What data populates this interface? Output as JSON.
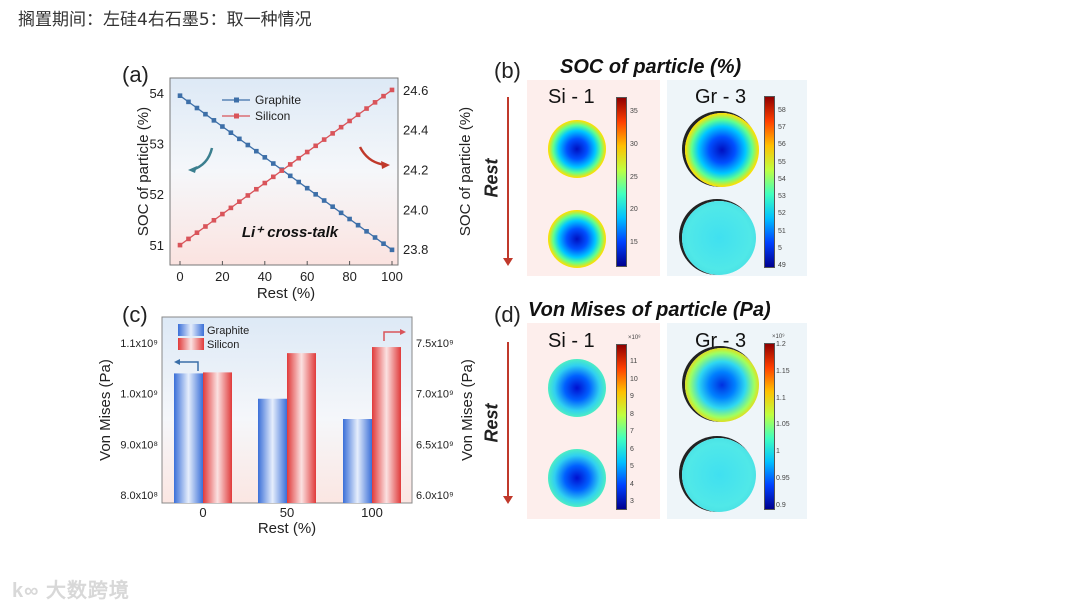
{
  "heading": "搁置期间：左硅4右石墨5：取一种情况",
  "watermark": "大数跨境",
  "panels": {
    "a": {
      "label": "(a)",
      "annotation": "Li⁺ cross-talk"
    },
    "b": {
      "label": "(b)",
      "title": "SOC of particle (%)",
      "rest": "Rest",
      "si": {
        "label": "Si - 1",
        "ticks": [
          "35",
          "30",
          "25",
          "20",
          "15"
        ]
      },
      "gr": {
        "label": "Gr - 3",
        "ticks": [
          "58",
          "57",
          "56",
          "55",
          "54",
          "53",
          "52",
          "51",
          "5",
          "49"
        ]
      }
    },
    "c": {
      "label": "(c)"
    },
    "d": {
      "label": "(d)",
      "title": "Von Mises of particle (Pa)",
      "rest": "Rest",
      "si": {
        "label": "Si - 1",
        "exp": "×10⁸",
        "ticks": [
          "11",
          "10",
          "9",
          "8",
          "7",
          "6",
          "5",
          "4",
          "3"
        ]
      },
      "gr": {
        "label": "Gr - 3",
        "exp": "×10⁹",
        "ticks": [
          "1.2",
          "1.15",
          "1.1",
          "1.05",
          "1",
          "0.95",
          "0.9"
        ]
      }
    }
  },
  "chart_data": [
    {
      "type": "line",
      "xlabel": "Rest (%)",
      "ylabel": "SOC of particle (%)",
      "y2label": "SOC of particle (%)",
      "xlim": [
        0,
        100
      ],
      "ylim": [
        50.6,
        54.3
      ],
      "y2lim": [
        23.72,
        24.66
      ],
      "xticks": [
        "0",
        "20",
        "40",
        "60",
        "80",
        "100"
      ],
      "yticks": [
        "51",
        "52",
        "53",
        "54"
      ],
      "y2ticks": [
        "23.8",
        "24.0",
        "24.2",
        "24.4",
        "24.6"
      ],
      "legend": "top-center",
      "series": [
        {
          "name": "Graphite",
          "axis": "left",
          "color": "#3d6fa8",
          "x_start": 0,
          "x_end": 100,
          "points": 25,
          "y_start": 53.95,
          "y_end": 50.9
        },
        {
          "name": "Silicon",
          "axis": "right",
          "color": "#d9545a",
          "x_start": 0,
          "x_end": 100,
          "points": 25,
          "y_start": 23.82,
          "y_end": 24.6
        }
      ]
    },
    {
      "type": "bar",
      "categories": [
        "0",
        "50",
        "100"
      ],
      "xlabel": "Rest (%)",
      "ylabel": "Von Mises (Pa)",
      "y2label": "Von Mises (Pa)",
      "ylim": [
        800000000.0,
        1150000000.0
      ],
      "y2lim": [
        6000000000.0,
        7750000000.0
      ],
      "yticks": [
        {
          "v": 800000000.0,
          "t": "8.0x10⁸"
        },
        {
          "v": 900000000.0,
          "t": "9.0x10⁸"
        },
        {
          "v": 1000000000.0,
          "t": "1.0x10⁹"
        },
        {
          "v": 1100000000.0,
          "t": "1.1x10⁹"
        }
      ],
      "y2ticks": [
        {
          "v": 6000000000.0,
          "t": "6.0x10⁹"
        },
        {
          "v": 6500000000.0,
          "t": "6.5x10⁹"
        },
        {
          "v": 7000000000.0,
          "t": "7.0x10⁹"
        },
        {
          "v": 7500000000.0,
          "t": "7.5x10⁹"
        }
      ],
      "legend": "top-left",
      "series": [
        {
          "name": "Graphite",
          "axis": "left",
          "color": "#3a6fd8",
          "values": [
            1040000000.0,
            990000000.0,
            950000000.0
          ]
        },
        {
          "name": "Silicon",
          "axis": "right",
          "color": "#e03a3a",
          "values": [
            7210000000.0,
            7400000000.0,
            7460000000.0
          ]
        }
      ]
    }
  ]
}
